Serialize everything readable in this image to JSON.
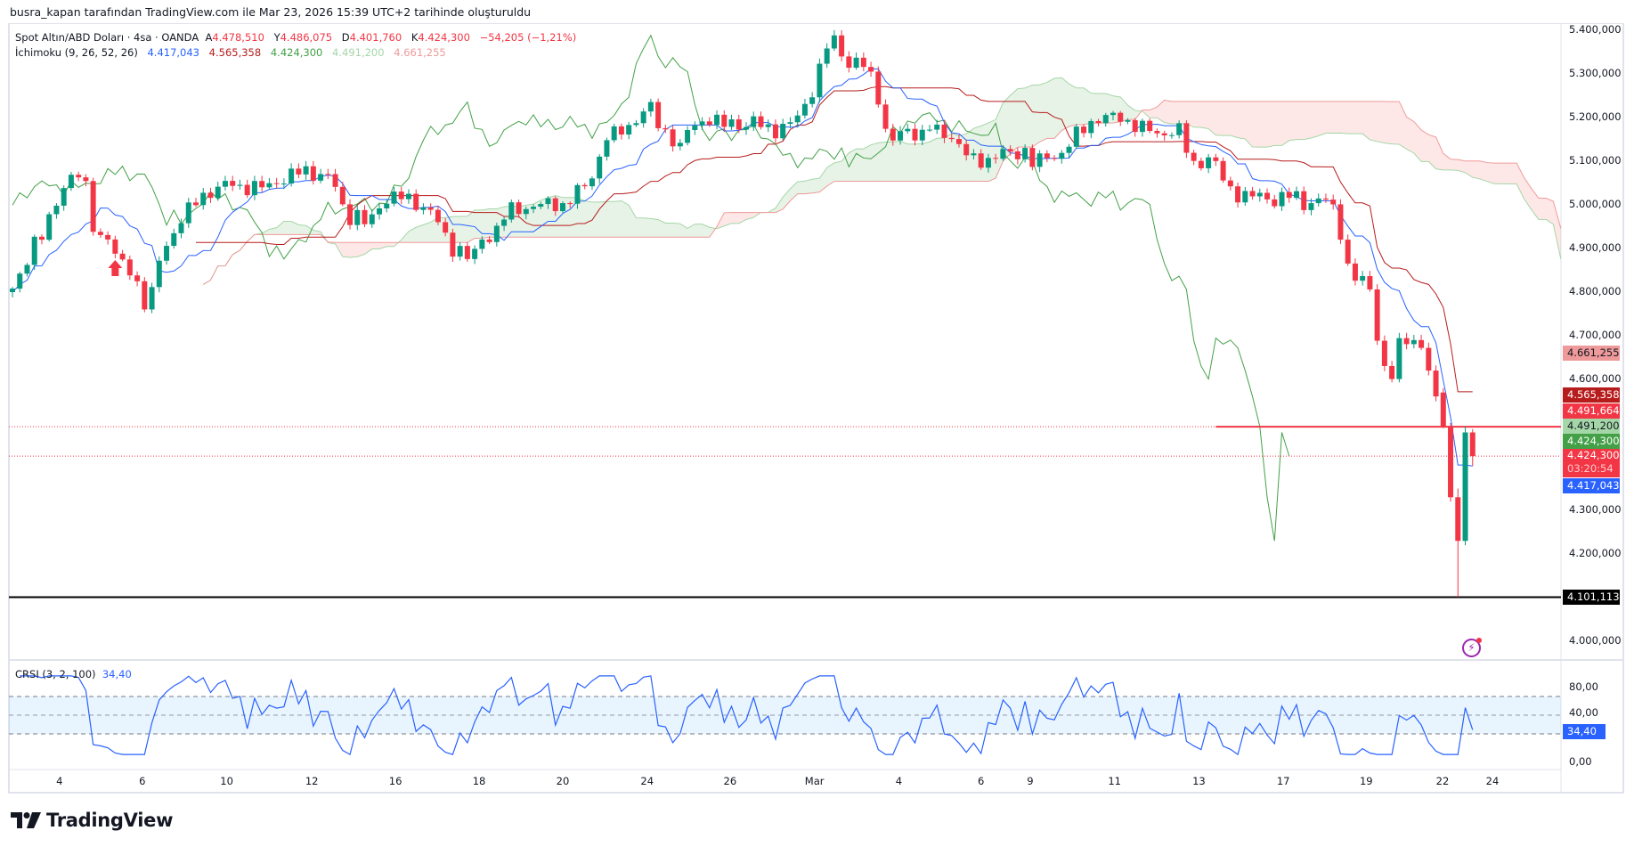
{
  "caption": "busra_kapan tarafından TradingView.com ile Mar 23, 2026 15:39 UTC+2 tarihinde oluşturuldu",
  "legend": {
    "symbol": "Spot Altın/ABD Doları · 4sa · OANDA",
    "o_label": "A",
    "o": "4.478,510",
    "h_label": "Y",
    "h": "4.486,075",
    "l_label": "D",
    "l": "4.401,760",
    "c_label": "K",
    "c": "4.424,300",
    "change": "−54,205 (−1,21%)",
    "ichimoku": "İchimoku (9, 26, 52, 26)",
    "tenkan": "4.417,043",
    "kijun": "4.565,358",
    "chikou": "4.424,300",
    "spanA": "4.491,200",
    "spanB": "4.661,255"
  },
  "colors": {
    "up": "#089981",
    "down": "#f23645",
    "tenkan": "#2962ff",
    "kijun": "#b71c1c",
    "chikou": "#43a047",
    "spanA": "#a5d6a7",
    "spanB": "#ef9a9a",
    "crsi": "#2962ff"
  },
  "price_axis": [
    "5.400,000",
    "5.300,000",
    "5.200,000",
    "5.100,000",
    "5.000,000",
    "4.900,000",
    "4.800,000",
    "4.700,000",
    "4.600,000",
    "4.300,000",
    "4.200,000",
    "4.000,000"
  ],
  "price_labels": [
    {
      "text": "4.661,255",
      "bg": "#ef9a9a",
      "fg": "#131722"
    },
    {
      "text": "4.565,358",
      "bg": "#b71c1c",
      "fg": "#ffffff"
    },
    {
      "text": "4.491,664",
      "bg": "#f23645",
      "fg": "#ffffff"
    },
    {
      "text": "4.491,200",
      "bg": "#a5d6a7",
      "fg": "#131722"
    },
    {
      "text": "4.424,300",
      "bg": "#43a047",
      "fg": "#ffffff"
    },
    {
      "text": "4.424,300",
      "bg": "#f23645",
      "fg": "#ffffff",
      "sub": "03:20:54"
    },
    {
      "text": "4.417,043",
      "bg": "#2962ff",
      "fg": "#ffffff"
    },
    {
      "text": "4.101,113",
      "bg": "#000000",
      "fg": "#ffffff"
    }
  ],
  "chart_data": {
    "type": "candlestick",
    "title": "Spot Altın/ABD Doları · 4sa · OANDA",
    "ylim": [
      3.97,
      5.42
    ],
    "anchor_closes": [
      4.8,
      4.85,
      4.92,
      4.93,
      4.99,
      5.05,
      5.08,
      5.04,
      4.92,
      4.94,
      4.87,
      4.86,
      4.82,
      4.75,
      4.87,
      4.92,
      4.96,
      4.99,
      5.02,
      5.03,
      5.04,
      5.05,
      5.04,
      5.04,
      5.04,
      5.05,
      5.06,
      5.07,
      5.08,
      5.07,
      5.07,
      5.04,
      4.97,
      4.98,
      4.95,
      4.99,
      5.02,
      5.02,
      5.01,
      5.0,
      4.99,
      4.95,
      4.9,
      4.9,
      4.87,
      4.92,
      4.93,
      4.97,
      4.99,
      4.99,
      5.0,
      5.0,
      5.0,
      5.0,
      5.03,
      5.04,
      5.09,
      5.16,
      5.16,
      5.18,
      5.2,
      5.23,
      5.18,
      5.16,
      5.13,
      5.18,
      5.19,
      5.2,
      5.18,
      5.19,
      5.18,
      5.19,
      5.18,
      5.17,
      5.18,
      5.19,
      5.23,
      5.28,
      5.36,
      5.38,
      5.32,
      5.33,
      5.31,
      5.25,
      5.14,
      5.16,
      5.17,
      5.16,
      5.18,
      5.16,
      5.16,
      5.13,
      5.1,
      5.1,
      5.11,
      5.12,
      5.11,
      5.13,
      5.09,
      5.11,
      5.11,
      5.13,
      5.16,
      5.18,
      5.2,
      5.2,
      5.2,
      5.19,
      5.18,
      5.17,
      5.16,
      5.17,
      5.17,
      5.09,
      5.1,
      5.11,
      5.06,
      5.03,
      5.02,
      5.02,
      5.02,
      5.01,
      5.02,
      5.02,
      5.0,
      5.01,
      5.01,
      4.98,
      4.86,
      4.82,
      4.83,
      4.68,
      4.58,
      4.68,
      4.7,
      4.68,
      4.6,
      4.49,
      4.35,
      4.33,
      4.42
    ],
    "bar_count": 200,
    "last_bars": [
      [
        4.57,
        4.58,
        4.488,
        4.492
      ],
      [
        4.492,
        4.5,
        4.32,
        4.33
      ],
      [
        4.33,
        4.35,
        4.101113,
        4.23
      ],
      [
        4.23,
        4.492,
        4.22,
        4.47851
      ],
      [
        4.47851,
        4.486075,
        4.40176,
        4.4243
      ]
    ],
    "ichimoku_params": [
      9,
      26,
      52,
      26
    ],
    "hlines": [
      {
        "price": 4.101113,
        "color": "#000000",
        "style": "solid"
      },
      {
        "price": 4.491664,
        "color": "#f23645",
        "style": "dotted"
      },
      {
        "price": 4.4243,
        "color": "#f23645",
        "style": "dotted"
      }
    ],
    "ray": {
      "price": 4.4917,
      "from_bar": 164,
      "color": "#f23645"
    },
    "time_ticks": [
      {
        "bar": 6.4,
        "label": "4"
      },
      {
        "bar": 17.7,
        "label": "6"
      },
      {
        "bar": 29.2,
        "label": "10"
      },
      {
        "bar": 40.8,
        "label": "12"
      },
      {
        "bar": 52.2,
        "label": "16"
      },
      {
        "bar": 63.6,
        "label": "18"
      },
      {
        "bar": 75,
        "label": "20"
      },
      {
        "bar": 86.5,
        "label": "24"
      },
      {
        "bar": 97.8,
        "label": "26"
      },
      {
        "bar": 109.3,
        "label": "Mar"
      },
      {
        "bar": 120.8,
        "label": "4"
      },
      {
        "bar": 132,
        "label": "6"
      },
      {
        "bar": 138.7,
        "label": "9"
      },
      {
        "bar": 150.2,
        "label": "11"
      },
      {
        "bar": 161.7,
        "label": "13"
      },
      {
        "bar": 173.2,
        "label": "17"
      },
      {
        "bar": 184.5,
        "label": "19"
      },
      {
        "bar": 194.9,
        "label": "22"
      },
      {
        "bar": 201.7,
        "label": "24"
      }
    ]
  },
  "crsi": {
    "title": "CRSI (3, 2, 100)",
    "value": "34,40",
    "last": 34.4,
    "axis": [
      "80,00",
      "40,00",
      "0,00"
    ],
    "bands": [
      70,
      50,
      30
    ]
  },
  "logo": "TradingView"
}
